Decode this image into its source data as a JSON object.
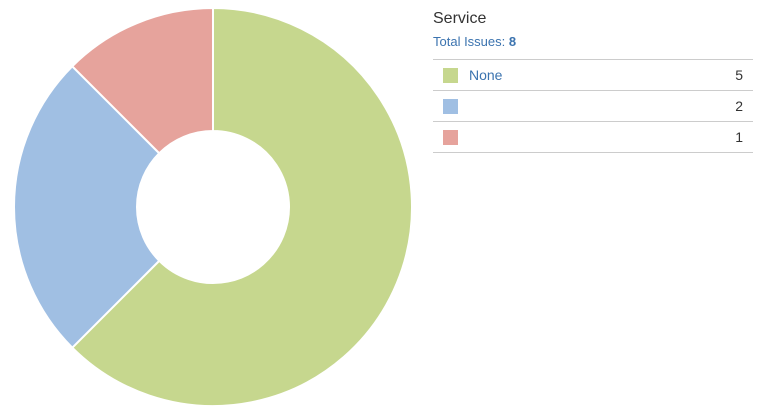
{
  "chart_data": {
    "type": "pie",
    "title": "Service",
    "total_label": "Total Issues:",
    "total": 8,
    "slices": [
      {
        "label": "None",
        "value": 5,
        "color": "#c6d78e"
      },
      {
        "label": "",
        "value": 2,
        "color": "#a0bfe3"
      },
      {
        "label": "",
        "value": 1,
        "color": "#e6a39c"
      }
    ]
  }
}
